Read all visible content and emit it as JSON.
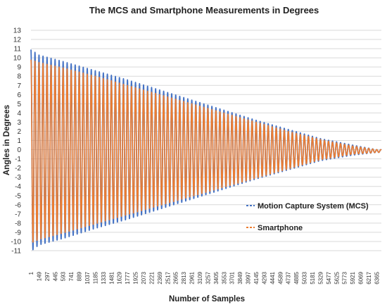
{
  "chart_data": {
    "type": "line",
    "title": "The MCS and Smartphone Measurements in Degrees",
    "xlabel": "Number of Samples",
    "ylabel": "Angles in Degrees",
    "ylim": [
      -11,
      13
    ],
    "xlim": [
      1,
      6450
    ],
    "y_ticks": [
      "13",
      "12",
      "11",
      "10",
      "9",
      "8",
      "7",
      "6",
      "5",
      "4",
      "3",
      "2",
      "1",
      "0",
      "-1",
      "-2",
      "-3",
      "-4",
      "-5",
      "-6",
      "-7",
      "-8",
      "-9",
      "-10",
      "-11"
    ],
    "x_ticks": [
      "1",
      "149",
      "297",
      "445",
      "593",
      "741",
      "889",
      "1037",
      "1185",
      "1333",
      "1481",
      "1629",
      "1777",
      "1925",
      "2073",
      "2221",
      "2369",
      "2517",
      "2665",
      "2813",
      "2961",
      "3109",
      "3257",
      "3405",
      "3553",
      "3701",
      "3849",
      "3997",
      "4145",
      "4293",
      "4441",
      "4589",
      "4737",
      "4885",
      "5033",
      "5181",
      "5329",
      "5477",
      "5625",
      "5773",
      "5921",
      "6069",
      "6217",
      "6365"
    ],
    "grid": "horizontal",
    "legend_position": "right",
    "series": [
      {
        "name": "Motion Capture System (MCS)",
        "color": "#4472C4",
        "description_points": {
          "x": [
            1,
            149,
            593,
            1185,
            1777,
            2369,
            2961,
            3553,
            4145,
            4737,
            5329,
            5921,
            6365
          ],
          "upper_envelope": [
            10.9,
            10.3,
            9.6,
            8.6,
            7.6,
            6.5,
            5.4,
            4.3,
            3.2,
            2.2,
            1.2,
            0.5,
            0.0
          ],
          "lower_envelope": [
            -11.1,
            -10.4,
            -9.7,
            -8.6,
            -7.6,
            -6.5,
            -5.4,
            -4.3,
            -3.2,
            -2.2,
            -1.2,
            -0.6,
            -0.3
          ]
        }
      },
      {
        "name": "Smartphone",
        "color": "#ED7D31",
        "description_points": {
          "x": [
            1,
            149,
            593,
            1185,
            1777,
            2369,
            2961,
            3553,
            4145,
            4737,
            5329,
            5921,
            6365
          ],
          "upper_envelope": [
            9.8,
            9.5,
            8.9,
            8.0,
            7.0,
            6.0,
            5.0,
            4.0,
            3.0,
            2.0,
            1.1,
            0.4,
            0.0
          ],
          "lower_envelope": [
            -10.2,
            -9.8,
            -9.1,
            -8.1,
            -7.1,
            -6.1,
            -5.1,
            -4.1,
            -3.1,
            -2.1,
            -1.1,
            -0.5,
            -0.3
          ]
        }
      }
    ]
  }
}
